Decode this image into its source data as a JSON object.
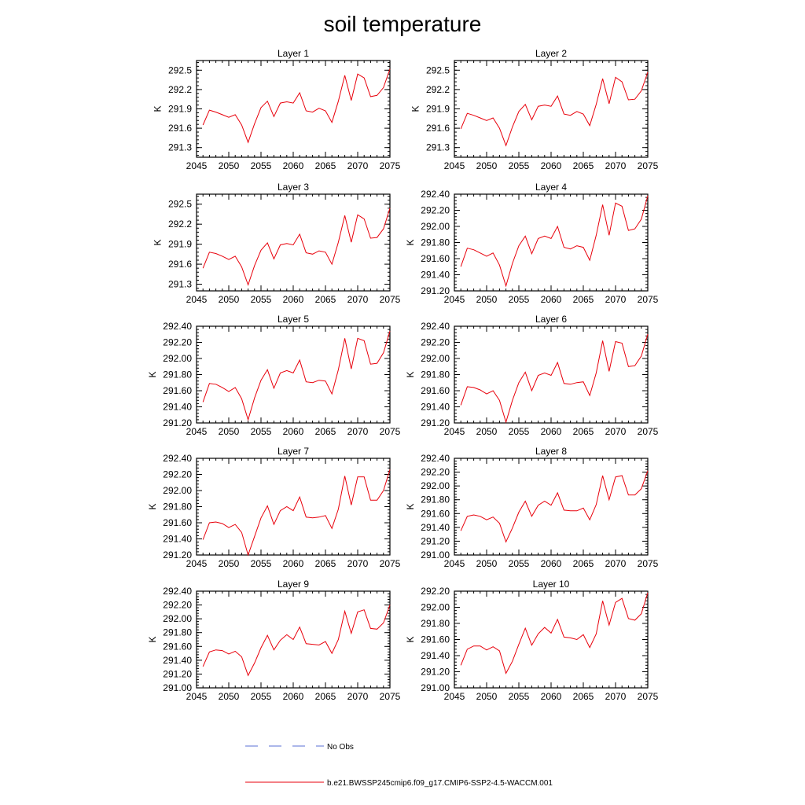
{
  "title": "soil temperature",
  "legend": [
    {
      "label": "No Obs",
      "style": "dashed",
      "color": "#5a6fd6"
    },
    {
      "label": "b.e21.BWSSP245cmip6.f09_g17.CMIP6-SSP2-4.5-WACCM.001",
      "style": "solid",
      "color": "#e8000b"
    }
  ],
  "chart_data": [
    {
      "type": "line",
      "title": "Layer 1",
      "ylabel": "K",
      "xlim": [
        2045,
        2075
      ],
      "ylim": [
        291.15,
        292.65
      ],
      "xticks": [
        "2045",
        "2050",
        "2055",
        "2060",
        "2065",
        "2070",
        "2075"
      ],
      "yticks": [
        "291.3",
        "291.6",
        "291.9",
        "292.2",
        "292.5"
      ],
      "x": [
        2046,
        2047,
        2048,
        2049,
        2050,
        2051,
        2052,
        2053,
        2054,
        2055,
        2056,
        2057,
        2058,
        2059,
        2060,
        2061,
        2062,
        2063,
        2064,
        2065,
        2066,
        2067,
        2068,
        2069,
        2070,
        2071,
        2072,
        2073,
        2074,
        2075
      ],
      "series": [
        {
          "values": [
            291.65,
            291.88,
            291.85,
            291.81,
            291.77,
            291.81,
            291.65,
            291.38,
            291.67,
            291.92,
            292.02,
            291.78,
            291.99,
            292.01,
            291.99,
            292.15,
            291.87,
            291.85,
            291.91,
            291.87,
            291.69,
            292.02,
            292.42,
            292.03,
            292.44,
            292.38,
            292.09,
            292.11,
            292.23,
            292.52
          ]
        }
      ]
    },
    {
      "type": "line",
      "title": "Layer 2",
      "ylabel": "K",
      "xlim": [
        2045,
        2075
      ],
      "ylim": [
        291.15,
        292.65
      ],
      "xticks": [
        "2045",
        "2050",
        "2055",
        "2060",
        "2065",
        "2070",
        "2075"
      ],
      "yticks": [
        "291.3",
        "291.6",
        "291.9",
        "292.2",
        "292.5"
      ],
      "x": [
        2046,
        2047,
        2048,
        2049,
        2050,
        2051,
        2052,
        2053,
        2054,
        2055,
        2056,
        2057,
        2058,
        2059,
        2060,
        2061,
        2062,
        2063,
        2064,
        2065,
        2066,
        2067,
        2068,
        2069,
        2070,
        2071,
        2072,
        2073,
        2074,
        2075
      ],
      "series": [
        {
          "values": [
            291.59,
            291.83,
            291.8,
            291.76,
            291.72,
            291.76,
            291.6,
            291.33,
            291.62,
            291.86,
            291.97,
            291.73,
            291.94,
            291.96,
            291.94,
            292.1,
            291.82,
            291.8,
            291.86,
            291.82,
            291.64,
            291.97,
            292.37,
            291.98,
            292.39,
            292.32,
            292.04,
            292.05,
            292.18,
            292.47
          ]
        }
      ]
    },
    {
      "type": "line",
      "title": "Layer 3",
      "ylabel": "K",
      "xlim": [
        2045,
        2075
      ],
      "ylim": [
        291.2,
        292.65
      ],
      "xticks": [
        "2045",
        "2050",
        "2055",
        "2060",
        "2065",
        "2070",
        "2075"
      ],
      "yticks": [
        "291.3",
        "291.6",
        "291.9",
        "292.2",
        "292.5"
      ],
      "x": [
        2046,
        2047,
        2048,
        2049,
        2050,
        2051,
        2052,
        2053,
        2054,
        2055,
        2056,
        2057,
        2058,
        2059,
        2060,
        2061,
        2062,
        2063,
        2064,
        2065,
        2066,
        2067,
        2068,
        2069,
        2070,
        2071,
        2072,
        2073,
        2074,
        2075
      ],
      "series": [
        {
          "values": [
            291.54,
            291.78,
            291.76,
            291.72,
            291.67,
            291.72,
            291.56,
            291.29,
            291.58,
            291.81,
            291.92,
            291.68,
            291.89,
            291.91,
            291.89,
            292.05,
            291.77,
            291.75,
            291.8,
            291.78,
            291.6,
            291.93,
            292.33,
            291.93,
            292.34,
            292.28,
            291.99,
            292.0,
            292.13,
            292.44
          ]
        }
      ]
    },
    {
      "type": "line",
      "title": "Layer 4",
      "ylabel": "K",
      "xlim": [
        2045,
        2075
      ],
      "ylim": [
        291.2,
        292.4
      ],
      "xticks": [
        "2045",
        "2050",
        "2055",
        "2060",
        "2065",
        "2070",
        "2075"
      ],
      "yticks": [
        "291.20",
        "291.40",
        "291.60",
        "291.80",
        "292.00",
        "292.20",
        "292.40"
      ],
      "x": [
        2046,
        2047,
        2048,
        2049,
        2050,
        2051,
        2052,
        2053,
        2054,
        2055,
        2056,
        2057,
        2058,
        2059,
        2060,
        2061,
        2062,
        2063,
        2064,
        2065,
        2066,
        2067,
        2068,
        2069,
        2070,
        2071,
        2072,
        2073,
        2074,
        2075
      ],
      "series": [
        {
          "values": [
            291.5,
            291.73,
            291.71,
            291.67,
            291.63,
            291.67,
            291.52,
            291.26,
            291.54,
            291.76,
            291.88,
            291.66,
            291.85,
            291.88,
            291.85,
            292.0,
            291.74,
            291.72,
            291.76,
            291.74,
            291.58,
            291.89,
            292.27,
            291.89,
            292.29,
            292.25,
            291.95,
            291.97,
            292.09,
            292.38
          ]
        }
      ]
    },
    {
      "type": "line",
      "title": "Layer 5",
      "ylabel": "K",
      "xlim": [
        2045,
        2075
      ],
      "ylim": [
        291.2,
        292.4
      ],
      "xticks": [
        "2045",
        "2050",
        "2055",
        "2060",
        "2065",
        "2070",
        "2075"
      ],
      "yticks": [
        "291.20",
        "291.40",
        "291.60",
        "291.80",
        "292.00",
        "292.20",
        "292.40"
      ],
      "x": [
        2046,
        2047,
        2048,
        2049,
        2050,
        2051,
        2052,
        2053,
        2054,
        2055,
        2056,
        2057,
        2058,
        2059,
        2060,
        2061,
        2062,
        2063,
        2064,
        2065,
        2066,
        2067,
        2068,
        2069,
        2070,
        2071,
        2072,
        2073,
        2074,
        2075
      ],
      "series": [
        {
          "values": [
            291.46,
            291.69,
            291.68,
            291.64,
            291.59,
            291.64,
            291.5,
            291.24,
            291.51,
            291.73,
            291.86,
            291.63,
            291.82,
            291.85,
            291.82,
            291.98,
            291.71,
            291.7,
            291.73,
            291.72,
            291.56,
            291.86,
            292.25,
            291.87,
            292.25,
            292.22,
            291.93,
            291.94,
            292.07,
            292.34
          ]
        }
      ]
    },
    {
      "type": "line",
      "title": "Layer 6",
      "ylabel": "K",
      "xlim": [
        2045,
        2075
      ],
      "ylim": [
        291.2,
        292.4
      ],
      "xticks": [
        "2045",
        "2050",
        "2055",
        "2060",
        "2065",
        "2070",
        "2075"
      ],
      "yticks": [
        "291.20",
        "291.40",
        "291.60",
        "291.80",
        "292.00",
        "292.20",
        "292.40"
      ],
      "x": [
        2046,
        2047,
        2048,
        2049,
        2050,
        2051,
        2052,
        2053,
        2054,
        2055,
        2056,
        2057,
        2058,
        2059,
        2060,
        2061,
        2062,
        2063,
        2064,
        2065,
        2066,
        2067,
        2068,
        2069,
        2070,
        2071,
        2072,
        2073,
        2074,
        2075
      ],
      "series": [
        {
          "values": [
            291.42,
            291.65,
            291.64,
            291.61,
            291.56,
            291.6,
            291.48,
            291.21,
            291.48,
            291.7,
            291.83,
            291.6,
            291.79,
            291.82,
            291.79,
            291.95,
            291.69,
            291.68,
            291.7,
            291.71,
            291.54,
            291.82,
            292.22,
            291.84,
            292.21,
            292.19,
            291.9,
            291.91,
            292.03,
            292.3
          ]
        }
      ]
    },
    {
      "type": "line",
      "title": "Layer 7",
      "ylabel": "K",
      "xlim": [
        2045,
        2075
      ],
      "ylim": [
        291.2,
        292.4
      ],
      "xticks": [
        "2045",
        "2050",
        "2055",
        "2060",
        "2065",
        "2070",
        "2075"
      ],
      "yticks": [
        "291.20",
        "291.40",
        "291.60",
        "291.80",
        "292.00",
        "292.20",
        "292.40"
      ],
      "x": [
        2046,
        2047,
        2048,
        2049,
        2050,
        2051,
        2052,
        2053,
        2054,
        2055,
        2056,
        2057,
        2058,
        2059,
        2060,
        2061,
        2062,
        2063,
        2064,
        2065,
        2066,
        2067,
        2068,
        2069,
        2070,
        2071,
        2072,
        2073,
        2074,
        2075
      ],
      "series": [
        {
          "values": [
            291.39,
            291.6,
            291.61,
            291.59,
            291.54,
            291.58,
            291.48,
            291.2,
            291.43,
            291.66,
            291.81,
            291.58,
            291.75,
            291.8,
            291.75,
            291.92,
            291.67,
            291.66,
            291.67,
            291.69,
            291.53,
            291.77,
            292.18,
            291.82,
            292.17,
            292.17,
            291.88,
            291.88,
            292.0,
            292.26
          ]
        }
      ]
    },
    {
      "type": "line",
      "title": "Layer 8",
      "ylabel": "K",
      "xlim": [
        2045,
        2075
      ],
      "ylim": [
        291.0,
        292.4
      ],
      "xticks": [
        "2045",
        "2050",
        "2055",
        "2060",
        "2065",
        "2070",
        "2075"
      ],
      "yticks": [
        "291.00",
        "291.20",
        "291.40",
        "291.60",
        "291.80",
        "292.00",
        "292.20",
        "292.40"
      ],
      "x": [
        2046,
        2047,
        2048,
        2049,
        2050,
        2051,
        2052,
        2053,
        2054,
        2055,
        2056,
        2057,
        2058,
        2059,
        2060,
        2061,
        2062,
        2063,
        2064,
        2065,
        2066,
        2067,
        2068,
        2069,
        2070,
        2071,
        2072,
        2073,
        2074,
        2075
      ],
      "series": [
        {
          "values": [
            291.35,
            291.56,
            291.58,
            291.56,
            291.51,
            291.55,
            291.46,
            291.19,
            291.39,
            291.62,
            291.78,
            291.56,
            291.72,
            291.78,
            291.72,
            291.9,
            291.65,
            291.64,
            291.64,
            291.68,
            291.51,
            291.73,
            292.15,
            291.8,
            292.13,
            292.15,
            291.87,
            291.87,
            291.96,
            292.22
          ]
        }
      ]
    },
    {
      "type": "line",
      "title": "Layer 9",
      "ylabel": "K",
      "xlim": [
        2045,
        2075
      ],
      "ylim": [
        291.0,
        292.4
      ],
      "xticks": [
        "2045",
        "2050",
        "2055",
        "2060",
        "2065",
        "2070",
        "2075"
      ],
      "yticks": [
        "291.00",
        "291.20",
        "291.40",
        "291.60",
        "291.80",
        "292.00",
        "292.20",
        "292.40"
      ],
      "x": [
        2046,
        2047,
        2048,
        2049,
        2050,
        2051,
        2052,
        2053,
        2054,
        2055,
        2056,
        2057,
        2058,
        2059,
        2060,
        2061,
        2062,
        2063,
        2064,
        2065,
        2066,
        2067,
        2068,
        2069,
        2070,
        2071,
        2072,
        2073,
        2074,
        2075
      ],
      "series": [
        {
          "values": [
            291.31,
            291.52,
            291.55,
            291.54,
            291.49,
            291.53,
            291.45,
            291.18,
            291.36,
            291.58,
            291.76,
            291.55,
            291.69,
            291.77,
            291.7,
            291.88,
            291.64,
            291.63,
            291.62,
            291.67,
            291.5,
            291.7,
            292.11,
            291.79,
            292.1,
            292.13,
            291.86,
            291.85,
            291.94,
            292.2
          ]
        }
      ]
    },
    {
      "type": "line",
      "title": "Layer 10",
      "ylabel": "K",
      "xlim": [
        2045,
        2075
      ],
      "ylim": [
        291.0,
        292.2
      ],
      "xticks": [
        "2045",
        "2050",
        "2055",
        "2060",
        "2065",
        "2070",
        "2075"
      ],
      "yticks": [
        "291.00",
        "291.20",
        "291.40",
        "291.60",
        "291.80",
        "292.00",
        "292.20"
      ],
      "x": [
        2046,
        2047,
        2048,
        2049,
        2050,
        2051,
        2052,
        2053,
        2054,
        2055,
        2056,
        2057,
        2058,
        2059,
        2060,
        2061,
        2062,
        2063,
        2064,
        2065,
        2066,
        2067,
        2068,
        2069,
        2070,
        2071,
        2072,
        2073,
        2074,
        2075
      ],
      "series": [
        {
          "values": [
            291.28,
            291.48,
            291.52,
            291.52,
            291.47,
            291.51,
            291.46,
            291.18,
            291.33,
            291.54,
            291.74,
            291.53,
            291.67,
            291.75,
            291.68,
            291.85,
            291.63,
            291.62,
            291.6,
            291.66,
            291.5,
            291.67,
            292.08,
            291.78,
            292.06,
            292.11,
            291.86,
            291.84,
            291.92,
            292.18
          ]
        }
      ]
    }
  ]
}
